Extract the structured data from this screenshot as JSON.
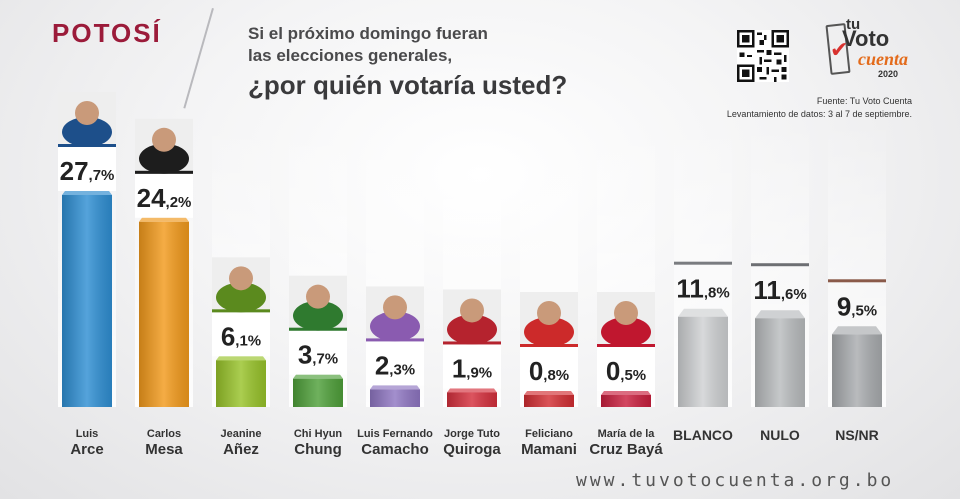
{
  "header": {
    "region": "POTOSÍ",
    "question_line1": "Si el próximo domingo fueran",
    "question_line2": "las elecciones generales,",
    "question_line3": "¿por quién votaría usted?"
  },
  "branding": {
    "logo_tu": "tu",
    "logo_voto": "Voto",
    "logo_cuenta": "cuenta",
    "logo_year": "2020"
  },
  "source": {
    "line1": "Fuente: Tu Voto Cuenta",
    "line2": "Levantamiento de datos: 3 al 7 de septiembre."
  },
  "footer": {
    "website": "www.tuvotocuenta.org.bo"
  },
  "chart_data": {
    "type": "bar",
    "categories": [
      {
        "line1": "Luis",
        "line2": "Arce"
      },
      {
        "line1": "Carlos",
        "line2": "Mesa"
      },
      {
        "line1": "Jeanine",
        "line2": "Añez"
      },
      {
        "line1": "Chi Hyun",
        "line2": "Chung"
      },
      {
        "line1": "Luis Fernando",
        "line2": "Camacho"
      },
      {
        "line1": "Jorge Tuto",
        "line2": "Quiroga"
      },
      {
        "line1": "Feliciano",
        "line2": "Mamani"
      },
      {
        "line1": "María de la",
        "line2": "Cruz Bayá"
      },
      {
        "line1": "BLANCO",
        "line2": ""
      },
      {
        "line1": "NULO",
        "line2": ""
      },
      {
        "line1": "NS/NR",
        "line2": ""
      }
    ],
    "values": [
      27.7,
      24.2,
      6.1,
      3.7,
      2.3,
      1.9,
      0.8,
      0.5,
      11.8,
      11.6,
      9.5
    ],
    "labels": [
      {
        "int": "27",
        "dec": ",7%"
      },
      {
        "int": "24",
        "dec": ",2%"
      },
      {
        "int": "6",
        "dec": ",1%"
      },
      {
        "int": "3",
        "dec": ",7%"
      },
      {
        "int": "2",
        "dec": ",3%"
      },
      {
        "int": "1",
        "dec": ",9%"
      },
      {
        "int": "0",
        "dec": ",8%"
      },
      {
        "int": "0",
        "dec": ",5%"
      },
      {
        "int": "11",
        "dec": ",8%"
      },
      {
        "int": "11",
        "dec": ",6%"
      },
      {
        "int": "9",
        "dec": ",5%"
      }
    ],
    "colors": [
      "#2f8fd3",
      "#f29a1c",
      "#98c32a",
      "#4fa03a",
      "#8f76c2",
      "#d42f3c",
      "#d22e33",
      "#c91f3e",
      "#cfd1d3",
      "#b9bcbe",
      "#a9acaf"
    ],
    "accent_colors": [
      "#1d4f8a",
      "#1d1d1d",
      "#5b8a1e",
      "#2f7a2f",
      "#8a5bb0",
      "#b5232e",
      "#cc2a2a",
      "#c0172f",
      "#7a7c80",
      "#6d6f73",
      "#8a5a4a"
    ],
    "with_photo": [
      true,
      true,
      true,
      true,
      true,
      true,
      true,
      true,
      false,
      false,
      false
    ],
    "ylim": [
      0,
      30
    ]
  }
}
